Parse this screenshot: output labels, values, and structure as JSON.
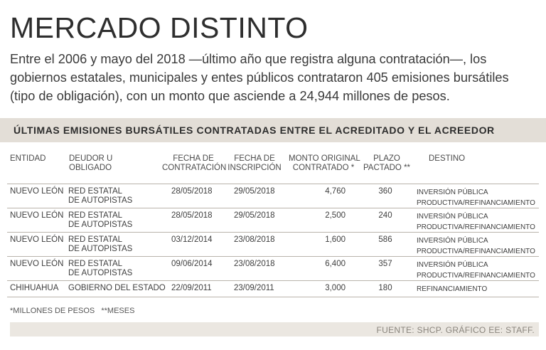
{
  "title": "MERCADO DISTINTO",
  "intro": "Entre el 2006 y mayo del 2018 —último año que registra alguna contratación—, los gobiernos estatales, municipales y entes públicos contrataron 405 emisiones bursátiles (tipo de obligación), con un monto que asciende a 24,944 millones de pesos.",
  "table": {
    "title": "ÚLTIMAS EMISIONES BURSÁTILES CONTRATADAS ENTRE EL ACREDITADO Y EL ACREEDOR",
    "headers": {
      "entidad": "ENTIDAD",
      "deudor_1": "DEUDOR U",
      "deudor_2": "OBLIGADO",
      "fecha_contratacion_1": "FECHA DE",
      "fecha_contratacion_2": "CONTRATACIÓN",
      "fecha_inscripcion_1": "FECHA DE",
      "fecha_inscripcion_2": "INSCRIPCIÓN",
      "monto_1": "MONTO ORIGINAL",
      "monto_2": "CONTRATADO *",
      "plazo_1": "PLAZO",
      "plazo_2": "PACTADO **",
      "destino": "DESTINO"
    },
    "rows": [
      {
        "entidad": "NUEVO LEÓN",
        "deudor_1": "RED ESTATAL",
        "deudor_2": "DE AUTOPISTAS",
        "fecha_contratacion": "28/05/2018",
        "fecha_inscripcion": "29/05/2018",
        "monto": "4,760",
        "plazo": "360",
        "destino_1": "INVERSIÓN PÚBLICA",
        "destino_2": "PRODUCTIVA/REFINANCIAMIENTO"
      },
      {
        "entidad": "NUEVO LEÓN",
        "deudor_1": "RED ESTATAL",
        "deudor_2": "DE AUTOPISTAS",
        "fecha_contratacion": "28/05/2018",
        "fecha_inscripcion": "29/05/2018",
        "monto": "2,500",
        "plazo": "240",
        "destino_1": "INVERSIÓN PÚBLICA",
        "destino_2": "PRODUCTIVA/REFINANCIAMIENTO"
      },
      {
        "entidad": "NUEVO LEÓN",
        "deudor_1": "RED ESTATAL",
        "deudor_2": "DE AUTOPISTAS",
        "fecha_contratacion": "03/12/2014",
        "fecha_inscripcion": "23/08/2018",
        "monto": "1,600",
        "plazo": "586",
        "destino_1": "INVERSIÓN PÚBLICA",
        "destino_2": "PRODUCTIVA/REFINANCIAMIENTO"
      },
      {
        "entidad": "NUEVO LEÓN",
        "deudor_1": "RED ESTATAL",
        "deudor_2": "DE AUTOPISTAS",
        "fecha_contratacion": "09/06/2014",
        "fecha_inscripcion": "23/08/2018",
        "monto": "6,400",
        "plazo": "357",
        "destino_1": "INVERSIÓN PÚBLICA",
        "destino_2": "PRODUCTIVA/REFINANCIAMIENTO"
      },
      {
        "entidad": "CHIHUAHUA",
        "deudor_1": "GOBIERNO DEL ESTADO",
        "deudor_2": "",
        "fecha_contratacion": "22/09/2011",
        "fecha_inscripcion": "23/09/2011",
        "monto": "3,000",
        "plazo": "180",
        "destino_1": "REFINANCIAMIENTO",
        "destino_2": ""
      }
    ]
  },
  "notes": "*MILLONES DE PESOS   **MESES",
  "source": "FUENTE: SHCP. GRÁFICO EE: STAFF."
}
